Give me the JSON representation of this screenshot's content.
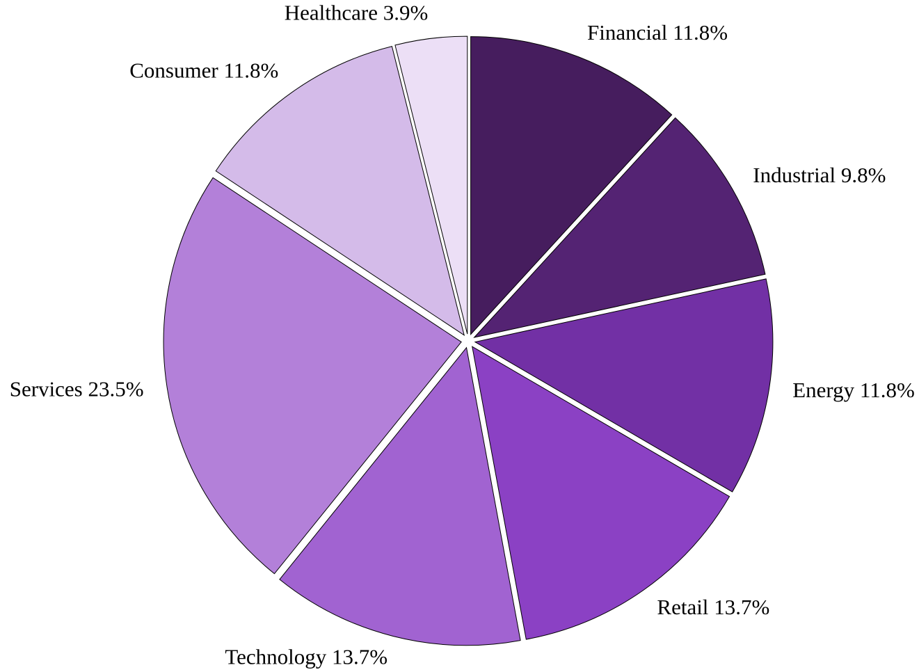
{
  "chart_data": {
    "type": "pie",
    "categories": [
      "Financial",
      "Industrial",
      "Energy",
      "Retail",
      "Technology",
      "Services",
      "Consumer",
      "Healthcare"
    ],
    "values": [
      11.8,
      9.8,
      11.8,
      13.7,
      13.7,
      23.5,
      11.8,
      3.9
    ],
    "value_labels": [
      "11.8%",
      "9.8%",
      "11.8%",
      "13.7%",
      "13.7%",
      "23.5%",
      "11.8%",
      "3.9%"
    ],
    "colors": [
      "#461d5e",
      "#542373",
      "#7230a5",
      "#8b41c4",
      "#a163d1",
      "#b380d9",
      "#d4bbe9",
      "#ecdff6"
    ]
  }
}
